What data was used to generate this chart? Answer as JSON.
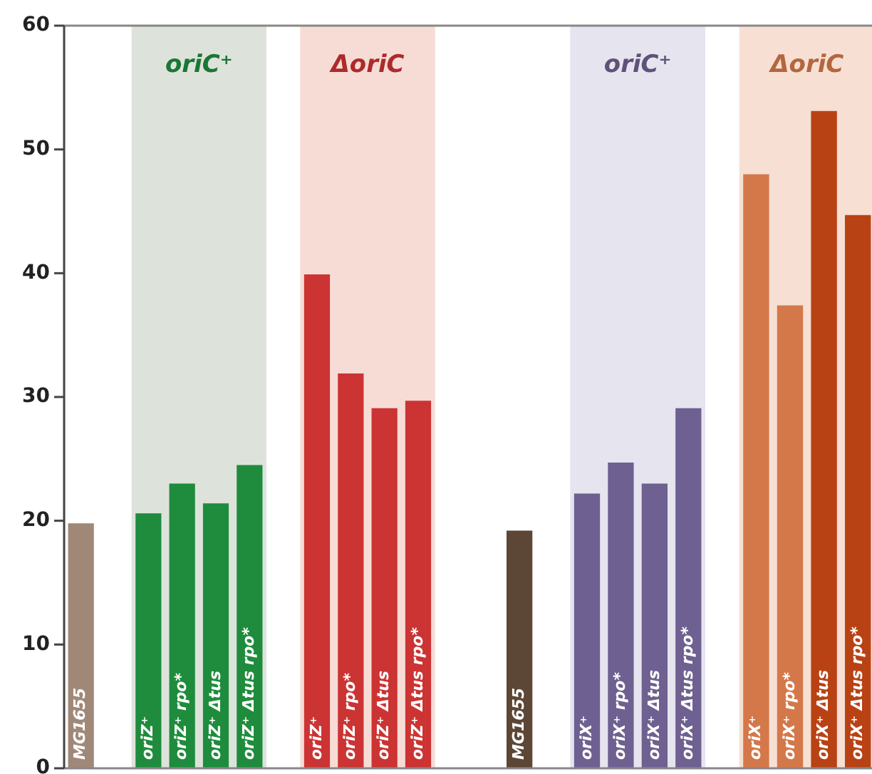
{
  "chart_data": [
    {
      "type": "bar",
      "categories": [
        "MG1655",
        null,
        "oriZ⁺",
        "oriZ⁺ rpo*",
        "oriZ⁺ Δtus",
        "oriZ⁺ Δtus rpo*"
      ],
      "values": [
        19.8,
        null,
        20.6,
        23.0,
        21.4,
        24.5
      ],
      "colors": [
        "#a08878",
        null,
        "#1e8c3c",
        "#1e8c3c",
        "#1e8c3c",
        "#1e8c3c"
      ],
      "ylim": [
        0,
        60
      ],
      "yticks": [
        0,
        10,
        20,
        30,
        40,
        50,
        60
      ],
      "bands": [
        {
          "axis": "x",
          "from": "oriZ⁺",
          "to": "oriZ⁺ Δtus rpo*",
          "label": "oriC⁺",
          "color": "#dde3db"
        }
      ],
      "grid": false,
      "legend": false
    },
    {
      "type": "bar",
      "categories": [
        null,
        "oriZ⁺",
        "oriZ⁺ rpo*",
        "oriZ⁺ Δtus",
        "oriZ⁺ Δtus rpo*",
        null
      ],
      "values": [
        null,
        39.9,
        31.9,
        29.1,
        29.7,
        null
      ],
      "colors": [
        null,
        "#cc3333",
        "#cc3333",
        "#cc3333",
        "#cc3333",
        null
      ],
      "ylim": [
        0,
        60
      ],
      "yticks": [
        0,
        10,
        20,
        30,
        40,
        50,
        60
      ],
      "bands": [
        {
          "axis": "x",
          "from": "oriZ⁺",
          "to": "oriZ⁺ Δtus rpo*",
          "label": "ΔoriC",
          "color": "#f7dcd6"
        }
      ],
      "tick_labels": "x",
      "grid": false,
      "legend": false
    },
    {
      "type": "bar",
      "categories": [
        null,
        "MG1655",
        null,
        "oriX⁺",
        "oriX⁺ rpo*",
        "oriX⁺ Δtus",
        "oriX⁺ Δtus rpo*"
      ],
      "values": [
        null,
        19.2,
        null,
        22.2,
        24.7,
        23.0,
        29.1
      ],
      "colors": [
        null,
        "#5c4636",
        null,
        "#6e6090",
        "#6e6090",
        "#6e6090",
        "#6e6090"
      ],
      "ylim": [
        0,
        60
      ],
      "yticks": [
        0,
        10,
        20,
        30,
        40,
        50,
        60
      ],
      "bands": [
        {
          "axis": "x",
          "from": "oriX⁺",
          "to": "oriX⁺ Δtus rpo*",
          "label": "oriC⁺",
          "color": "#e6e4ee"
        }
      ],
      "tick_labels": "x",
      "grid": false,
      "legend": false
    },
    {
      "type": "bar",
      "categories": [
        null,
        "oriX⁺",
        "oriX⁺ rpo*",
        "oriX⁺ Δtus",
        "oriX⁺ Δtus rpo*"
      ],
      "values": [
        null,
        48.0,
        37.4,
        53.1,
        44.7
      ],
      "colors": [
        null,
        "#d4784a",
        "#d4784a",
        "#b84214",
        "#b84214"
      ],
      "ylim": [
        0,
        60
      ],
      "yticks": [
        0,
        10,
        20,
        30,
        40,
        50,
        60
      ],
      "bands": [
        {
          "axis": "x",
          "from": "oriX⁺",
          "to": "oriX⁺ Δtus rpo*",
          "label": "ΔoriC",
          "color": "#f7e0d3"
        }
      ],
      "tick_labels": "x",
      "grid": false,
      "legend": false
    }
  ]
}
